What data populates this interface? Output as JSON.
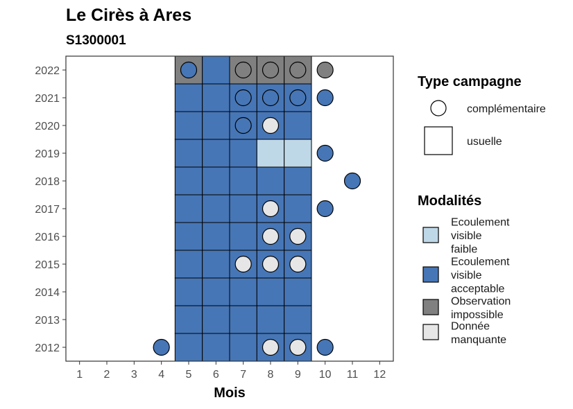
{
  "chart_data": {
    "type": "heatmap",
    "title": "Le Cirès à Ares",
    "subtitle": "S1300001",
    "xlabel": "Mois",
    "ylabel": "",
    "x_ticks": [
      "1",
      "2",
      "3",
      "4",
      "5",
      "6",
      "7",
      "8",
      "9",
      "10",
      "11",
      "12"
    ],
    "y_ticks": [
      "2012",
      "2013",
      "2014",
      "2015",
      "2016",
      "2017",
      "2018",
      "2019",
      "2020",
      "2021",
      "2022"
    ],
    "x_range": [
      0.5,
      12.5
    ],
    "y_range": [
      2011.5,
      2022.5
    ],
    "grid": false,
    "modalities": {
      "ecoulement_faible": {
        "label": "Ecoulement visible faible",
        "color": "#bfd8e8"
      },
      "ecoulement_acceptable": {
        "label": "Ecoulement visible acceptable",
        "color": "#4676b6"
      },
      "observation_impossible": {
        "label": "Observation impossible",
        "color": "#808080"
      },
      "donnee_manquante": {
        "label": "Donnée manquante",
        "color": "#e6e6e6"
      }
    },
    "campaign_types": {
      "complementaire": {
        "label": "complémentaire",
        "shape": "circle"
      },
      "usuelle": {
        "label": "usuelle",
        "shape": "square"
      }
    },
    "tiles": [
      {
        "month": 5,
        "year": 2022,
        "modality": "observation_impossible"
      },
      {
        "month": 6,
        "year": 2022,
        "modality": "ecoulement_acceptable"
      },
      {
        "month": 7,
        "year": 2022,
        "modality": "observation_impossible"
      },
      {
        "month": 8,
        "year": 2022,
        "modality": "observation_impossible"
      },
      {
        "month": 9,
        "year": 2022,
        "modality": "observation_impossible"
      },
      {
        "month": 5,
        "year": 2021,
        "modality": "ecoulement_acceptable"
      },
      {
        "month": 6,
        "year": 2021,
        "modality": "ecoulement_acceptable"
      },
      {
        "month": 7,
        "year": 2021,
        "modality": "ecoulement_acceptable"
      },
      {
        "month": 8,
        "year": 2021,
        "modality": "ecoulement_acceptable"
      },
      {
        "month": 9,
        "year": 2021,
        "modality": "ecoulement_acceptable"
      },
      {
        "month": 5,
        "year": 2020,
        "modality": "ecoulement_acceptable"
      },
      {
        "month": 6,
        "year": 2020,
        "modality": "ecoulement_acceptable"
      },
      {
        "month": 7,
        "year": 2020,
        "modality": "ecoulement_acceptable"
      },
      {
        "month": 8,
        "year": 2020,
        "modality": "ecoulement_acceptable"
      },
      {
        "month": 9,
        "year": 2020,
        "modality": "ecoulement_acceptable"
      },
      {
        "month": 5,
        "year": 2019,
        "modality": "ecoulement_acceptable"
      },
      {
        "month": 6,
        "year": 2019,
        "modality": "ecoulement_acceptable"
      },
      {
        "month": 7,
        "year": 2019,
        "modality": "ecoulement_acceptable"
      },
      {
        "month": 8,
        "year": 2019,
        "modality": "ecoulement_faible"
      },
      {
        "month": 9,
        "year": 2019,
        "modality": "ecoulement_faible"
      },
      {
        "month": 5,
        "year": 2018,
        "modality": "ecoulement_acceptable"
      },
      {
        "month": 6,
        "year": 2018,
        "modality": "ecoulement_acceptable"
      },
      {
        "month": 7,
        "year": 2018,
        "modality": "ecoulement_acceptable"
      },
      {
        "month": 8,
        "year": 2018,
        "modality": "ecoulement_acceptable"
      },
      {
        "month": 9,
        "year": 2018,
        "modality": "ecoulement_acceptable"
      },
      {
        "month": 5,
        "year": 2017,
        "modality": "ecoulement_acceptable"
      },
      {
        "month": 6,
        "year": 2017,
        "modality": "ecoulement_acceptable"
      },
      {
        "month": 7,
        "year": 2017,
        "modality": "ecoulement_acceptable"
      },
      {
        "month": 8,
        "year": 2017,
        "modality": "ecoulement_acceptable"
      },
      {
        "month": 9,
        "year": 2017,
        "modality": "ecoulement_acceptable"
      },
      {
        "month": 5,
        "year": 2016,
        "modality": "ecoulement_acceptable"
      },
      {
        "month": 6,
        "year": 2016,
        "modality": "ecoulement_acceptable"
      },
      {
        "month": 7,
        "year": 2016,
        "modality": "ecoulement_acceptable"
      },
      {
        "month": 8,
        "year": 2016,
        "modality": "ecoulement_acceptable"
      },
      {
        "month": 9,
        "year": 2016,
        "modality": "ecoulement_acceptable"
      },
      {
        "month": 5,
        "year": 2015,
        "modality": "ecoulement_acceptable"
      },
      {
        "month": 6,
        "year": 2015,
        "modality": "ecoulement_acceptable"
      },
      {
        "month": 7,
        "year": 2015,
        "modality": "ecoulement_acceptable"
      },
      {
        "month": 8,
        "year": 2015,
        "modality": "ecoulement_acceptable"
      },
      {
        "month": 9,
        "year": 2015,
        "modality": "ecoulement_acceptable"
      },
      {
        "month": 5,
        "year": 2014,
        "modality": "ecoulement_acceptable"
      },
      {
        "month": 6,
        "year": 2014,
        "modality": "ecoulement_acceptable"
      },
      {
        "month": 7,
        "year": 2014,
        "modality": "ecoulement_acceptable"
      },
      {
        "month": 8,
        "year": 2014,
        "modality": "ecoulement_acceptable"
      },
      {
        "month": 9,
        "year": 2014,
        "modality": "ecoulement_acceptable"
      },
      {
        "month": 5,
        "year": 2013,
        "modality": "ecoulement_acceptable"
      },
      {
        "month": 6,
        "year": 2013,
        "modality": "ecoulement_acceptable"
      },
      {
        "month": 7,
        "year": 2013,
        "modality": "ecoulement_acceptable"
      },
      {
        "month": 8,
        "year": 2013,
        "modality": "ecoulement_acceptable"
      },
      {
        "month": 9,
        "year": 2013,
        "modality": "ecoulement_acceptable"
      },
      {
        "month": 5,
        "year": 2012,
        "modality": "ecoulement_acceptable"
      },
      {
        "month": 6,
        "year": 2012,
        "modality": "ecoulement_acceptable"
      },
      {
        "month": 7,
        "year": 2012,
        "modality": "ecoulement_acceptable"
      },
      {
        "month": 8,
        "year": 2012,
        "modality": "ecoulement_acceptable"
      },
      {
        "month": 9,
        "year": 2012,
        "modality": "ecoulement_acceptable"
      }
    ],
    "points": [
      {
        "month": 5,
        "year": 2022,
        "modality": "ecoulement_acceptable"
      },
      {
        "month": 7,
        "year": 2022,
        "modality": "observation_impossible"
      },
      {
        "month": 8,
        "year": 2022,
        "modality": "observation_impossible"
      },
      {
        "month": 9,
        "year": 2022,
        "modality": "observation_impossible"
      },
      {
        "month": 10,
        "year": 2022,
        "modality": "observation_impossible"
      },
      {
        "month": 7,
        "year": 2021,
        "modality": "ecoulement_acceptable"
      },
      {
        "month": 8,
        "year": 2021,
        "modality": "ecoulement_acceptable"
      },
      {
        "month": 9,
        "year": 2021,
        "modality": "ecoulement_acceptable"
      },
      {
        "month": 10,
        "year": 2021,
        "modality": "ecoulement_acceptable"
      },
      {
        "month": 7,
        "year": 2020,
        "modality": "ecoulement_acceptable"
      },
      {
        "month": 8,
        "year": 2020,
        "modality": "donnee_manquante"
      },
      {
        "month": 10,
        "year": 2019,
        "modality": "ecoulement_acceptable"
      },
      {
        "month": 11,
        "year": 2018,
        "modality": "ecoulement_acceptable"
      },
      {
        "month": 8,
        "year": 2017,
        "modality": "donnee_manquante"
      },
      {
        "month": 10,
        "year": 2017,
        "modality": "ecoulement_acceptable"
      },
      {
        "month": 8,
        "year": 2016,
        "modality": "donnee_manquante"
      },
      {
        "month": 9,
        "year": 2016,
        "modality": "donnee_manquante"
      },
      {
        "month": 7,
        "year": 2015,
        "modality": "donnee_manquante"
      },
      {
        "month": 8,
        "year": 2015,
        "modality": "donnee_manquante"
      },
      {
        "month": 9,
        "year": 2015,
        "modality": "donnee_manquante"
      },
      {
        "month": 4,
        "year": 2012,
        "modality": "ecoulement_acceptable"
      },
      {
        "month": 8,
        "year": 2012,
        "modality": "donnee_manquante"
      },
      {
        "month": 9,
        "year": 2012,
        "modality": "donnee_manquante"
      },
      {
        "month": 10,
        "year": 2012,
        "modality": "ecoulement_acceptable"
      }
    ],
    "legend_placement": "right"
  },
  "legend": {
    "type_title": "Type campagne",
    "type_items": [
      "complémentaire",
      "usuelle"
    ],
    "modality_title": "Modalités",
    "modality_items": [
      {
        "lines": [
          "Ecoulement",
          "visible",
          "faible"
        ],
        "color": "#bfd8e8"
      },
      {
        "lines": [
          "Ecoulement",
          "visible",
          "acceptable"
        ],
        "color": "#4676b6"
      },
      {
        "lines": [
          "Observation",
          "impossible"
        ],
        "color": "#808080"
      },
      {
        "lines": [
          "Donnée",
          "manquante"
        ],
        "color": "#e6e6e6"
      }
    ]
  }
}
